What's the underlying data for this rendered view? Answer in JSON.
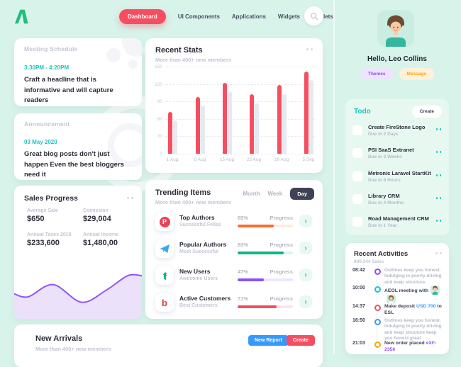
{
  "colors": {
    "bg": "#d8f3ea",
    "accent_red": "#f64e60",
    "teal": "#1bc5bd",
    "purple": "#8950fc",
    "blue": "#3699ff",
    "orange": "#ffa800",
    "green": "#0bb783",
    "logo_green": "#21bf7c"
  },
  "nav": {
    "items": [
      {
        "label": "Dashboard",
        "active": true
      },
      {
        "label": "UI Components",
        "active": false
      },
      {
        "label": "Applications",
        "active": false
      },
      {
        "label": "Widgets",
        "active": false
      },
      {
        "label": "Portlets",
        "active": false
      }
    ]
  },
  "meeting": {
    "title": "Meeting Schedule",
    "time": "3:30PM - 4:20PM",
    "text": "Craft a headline that is informative and will capture readers"
  },
  "announcement": {
    "title": "Announcement",
    "date": "03 May 2020",
    "text": "Great blog posts don't just happen Even the best bloggers need it"
  },
  "sales": {
    "title": "Sales Progress",
    "stats": [
      {
        "label": "Average Sale",
        "value": "$650"
      },
      {
        "label": "Comission",
        "value": "$29,004"
      },
      {
        "label": "Annual Taxes 2019",
        "value": "$233,600"
      },
      {
        "label": "Annual Income",
        "value": "$1,480,00"
      }
    ]
  },
  "recent_stats": {
    "title": "Recent Stats",
    "subtitle": "More than 400+ new members"
  },
  "chart_data": [
    {
      "type": "bar",
      "title": "Recent Stats",
      "categories": [
        "1 Aug",
        "8 Aug",
        "15 Aug",
        "22 Aug",
        "29 Aug",
        "5 Sep"
      ],
      "series": [
        {
          "name": "current",
          "color": "#f64e60",
          "values": [
            72,
            98,
            122,
            102,
            118,
            142
          ]
        },
        {
          "name": "previous",
          "color": "#e7e9f0",
          "values": [
            57,
            83,
            107,
            87,
            103,
            127
          ]
        }
      ],
      "ylim": [
        0,
        150
      ],
      "yticks": [
        150,
        120,
        90,
        60,
        30,
        0
      ],
      "grid": "dotted-horizontal",
      "legend": "none"
    },
    {
      "type": "area",
      "title": "Sales Progress trend",
      "stroke": "#9054f7",
      "fill": "#ece1fb",
      "x": [
        0,
        20,
        55,
        95,
        130,
        160,
        180
      ],
      "values": [
        45,
        40,
        62,
        30,
        52,
        78,
        78
      ],
      "ylim": [
        0,
        100
      ],
      "xlabel": "",
      "ylabel": ""
    }
  ],
  "trending": {
    "title": "Trending Items",
    "subtitle": "More than 400+ new members",
    "tabs": [
      {
        "label": "Month",
        "active": false
      },
      {
        "label": "Week",
        "active": false
      },
      {
        "label": "Day",
        "active": true
      }
    ],
    "progress_label": "Progress",
    "items": [
      {
        "icon": "producthunt-icon",
        "title": "Top Authors",
        "subtitle": "Successful Fellas",
        "percent": "65%",
        "value": 65,
        "color": "#fd6b2c"
      },
      {
        "icon": "telegram-icon",
        "title": "Popular Authors",
        "subtitle": "Most Successful",
        "percent": "83%",
        "value": 83,
        "color": "#0bb783"
      },
      {
        "icon": "glitch-f-icon",
        "title": "New Users",
        "subtitle": "Awesome Users",
        "percent": "47%",
        "value": 47,
        "color": "#8950fc"
      },
      {
        "icon": "letter-b-icon",
        "title": "Active Customers",
        "subtitle": "Best Customers",
        "percent": "71%",
        "value": 71,
        "color": "#f64e60"
      }
    ]
  },
  "arrivals": {
    "title": "New Arrivals",
    "subtitle": "More than 400+ new members",
    "new_report_label": "New Report",
    "create_label": "Create"
  },
  "profile": {
    "greeting": "Hello, Leo Collins",
    "themes_label": "Themes",
    "message_label": "Message"
  },
  "todo": {
    "title": "Todo",
    "create_label": "Create",
    "items": [
      {
        "title": "Create FireStone Logo",
        "due": "Due in 2 Days"
      },
      {
        "title": "PSI SaaS Extranet",
        "due": "Due in 3 Weeks"
      },
      {
        "title": "Metronic Laravel StartKit",
        "due": "Due in 8 Hours"
      },
      {
        "title": "Library CRM",
        "due": "Due in 4 Months"
      },
      {
        "title": "Road Management CRM",
        "due": "Due in 1 Year"
      }
    ]
  },
  "activities": {
    "title": "Recent Activities",
    "subtitle": "890,344 Sales",
    "entries": [
      {
        "time": "08:42",
        "dot": "#8950fc",
        "bold": false,
        "segments": [
          {
            "text": "Outlines keep you honest. Indulging in poorly driving and keep structure"
          }
        ]
      },
      {
        "time": "10:00",
        "dot": "#1bc5bd",
        "bold": true,
        "segments": [
          {
            "text": "AEOL meeting with"
          }
        ],
        "avatars": [
          "boy",
          "girl"
        ]
      },
      {
        "time": "14:37",
        "dot": "#f64e60",
        "bold": true,
        "segments": [
          {
            "text": "Make deposit "
          },
          {
            "text": "USD 700",
            "color": "#3699ff"
          },
          {
            "text": " to ESL"
          }
        ]
      },
      {
        "time": "16:50",
        "dot": "#3699ff",
        "bold": false,
        "segments": [
          {
            "text": "Outlines keep you honest. Indulging in poorly driving and keep structure keep you honest great"
          }
        ]
      },
      {
        "time": "21:03",
        "dot": "#ffa800",
        "bold": true,
        "segments": [
          {
            "text": "New order placed "
          },
          {
            "text": "#XF-2356",
            "color": "#8950fc"
          }
        ]
      }
    ]
  }
}
